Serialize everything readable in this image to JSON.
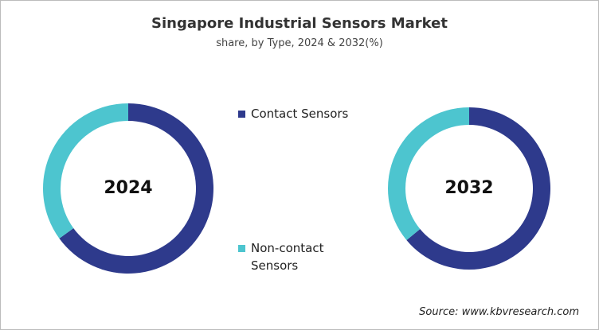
{
  "title": "Singapore Industrial Sensors Market",
  "subtitle": "share, by Type, 2024 & 2032(%)",
  "source": "Source: www.kbvresearch.com",
  "legend": {
    "labels": [
      "Contact Sensors",
      "Non-contact Sensors"
    ],
    "colors": [
      "#2e3a8c",
      "#4dc5cf"
    ]
  },
  "chart_data": [
    {
      "type": "pie",
      "label": "2024",
      "values": [
        65,
        35
      ]
    },
    {
      "type": "pie",
      "label": "2032",
      "values": [
        64,
        36
      ]
    }
  ]
}
